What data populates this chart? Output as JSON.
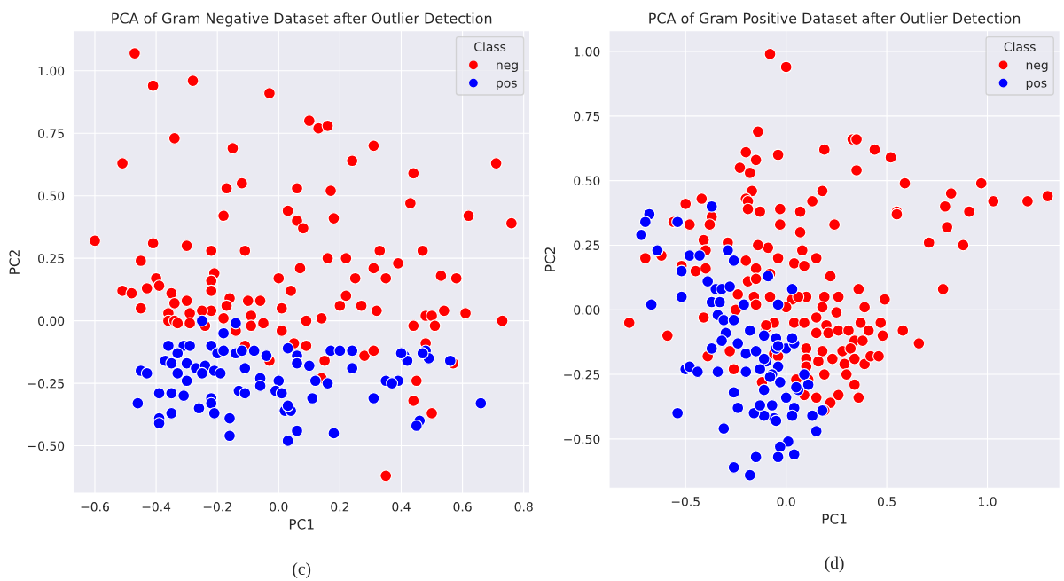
{
  "chart_data": [
    {
      "type": "scatter",
      "title": "PCA of Gram Negative Dataset after Outlier Detection",
      "xlabel": "PC1",
      "ylabel": "PC2",
      "legend_title": "Class",
      "legend": "top right",
      "grid": true,
      "marker": "circle",
      "annotations": [
        "(c)"
      ],
      "xlim": [
        -0.67,
        0.82
      ],
      "ylim": [
        -0.69,
        1.16
      ],
      "xticks": [
        {
          "value": -0.6,
          "label": "−0.6"
        },
        {
          "value": -0.4,
          "label": "−0.4"
        },
        {
          "value": -0.2,
          "label": "−0.2"
        },
        {
          "value": 0.0,
          "label": "0.0"
        },
        {
          "value": 0.2,
          "label": "0.2"
        },
        {
          "value": 0.4,
          "label": "0.4"
        },
        {
          "value": 0.6,
          "label": "0.6"
        },
        {
          "value": 0.8,
          "label": "0.8"
        }
      ],
      "yticks": [
        {
          "value": -0.5,
          "label": "−0.50"
        },
        {
          "value": -0.25,
          "label": "−0.25"
        },
        {
          "value": 0.0,
          "label": "0.00"
        },
        {
          "value": 0.25,
          "label": "0.25"
        },
        {
          "value": 0.5,
          "label": "0.50"
        },
        {
          "value": 0.75,
          "label": "0.75"
        },
        {
          "value": 1.0,
          "label": "1.00"
        }
      ],
      "series": [
        {
          "name": "neg",
          "color": "#ff0000",
          "x": [
            -0.47,
            -0.41,
            -0.28,
            -0.03,
            0.1,
            0.13,
            0.16,
            -0.34,
            -0.51,
            -0.15,
            0.31,
            0.24,
            0.71,
            0.44,
            -0.17,
            -0.12,
            0.06,
            0.17,
            0.43,
            -0.18,
            0.03,
            0.06,
            0.08,
            0.18,
            0.62,
            0.76,
            -0.6,
            -0.41,
            -0.3,
            -0.22,
            -0.11,
            0.16,
            0.22,
            0.33,
            0.47,
            -0.45,
            0.07,
            0.31,
            0.39,
            -0.21,
            0.0,
            0.25,
            0.35,
            0.53,
            0.58,
            -0.51,
            -0.48,
            -0.43,
            -0.4,
            -0.39,
            -0.35,
            -0.22,
            -0.22,
            -0.16,
            -0.3,
            -0.1,
            -0.06,
            0.04,
            0.22,
            -0.45,
            -0.34,
            -0.17,
            0.01,
            0.2,
            0.27,
            0.32,
            -0.36,
            -0.29,
            -0.22,
            -0.25,
            -0.09,
            0.14,
            0.48,
            0.5,
            0.54,
            0.61,
            -0.36,
            -0.34,
            -0.33,
            -0.29,
            -0.24,
            -0.18,
            -0.09,
            -0.05,
            0.09,
            0.44,
            0.51,
            0.73,
            -0.14,
            0.01,
            -0.11,
            0.05,
            0.09,
            0.28,
            0.31,
            -0.03,
            0.15,
            0.57,
            0.14,
            0.45,
            0.44,
            0.5,
            0.35,
            0.48
          ],
          "values": [
            1.07,
            0.94,
            0.96,
            0.91,
            0.8,
            0.77,
            0.78,
            0.73,
            0.63,
            0.69,
            0.7,
            0.64,
            0.63,
            0.59,
            0.53,
            0.55,
            0.53,
            0.52,
            0.47,
            0.42,
            0.44,
            0.4,
            0.37,
            0.41,
            0.42,
            0.39,
            0.32,
            0.31,
            0.3,
            0.28,
            0.28,
            0.25,
            0.25,
            0.28,
            0.28,
            0.24,
            0.21,
            0.21,
            0.23,
            0.19,
            0.17,
            0.17,
            0.17,
            0.18,
            0.17,
            0.12,
            0.11,
            0.13,
            0.17,
            0.14,
            0.11,
            0.16,
            0.12,
            0.09,
            0.08,
            0.08,
            0.08,
            0.12,
            0.1,
            0.05,
            0.07,
            0.06,
            0.05,
            0.06,
            0.06,
            0.04,
            0.03,
            0.03,
            0.04,
            0.04,
            0.02,
            0.01,
            0.02,
            0.02,
            0.04,
            0.03,
            0.0,
            0.0,
            -0.01,
            -0.01,
            -0.02,
            0.01,
            -0.02,
            -0.01,
            0.0,
            -0.02,
            -0.02,
            0.0,
            -0.04,
            -0.04,
            -0.1,
            -0.09,
            -0.1,
            -0.14,
            -0.12,
            -0.16,
            -0.16,
            -0.17,
            -0.23,
            -0.24,
            -0.32,
            -0.37,
            -0.62,
            -0.09
          ]
        },
        {
          "name": "pos",
          "color": "#0000ff",
          "x": [
            -0.25,
            -0.14,
            -0.18,
            -0.36,
            -0.31,
            -0.29,
            -0.22,
            -0.2,
            -0.18,
            -0.14,
            -0.12,
            -0.08,
            -0.33,
            -0.37,
            -0.35,
            -0.3,
            -0.27,
            -0.24,
            -0.21,
            -0.19,
            -0.11,
            -0.04,
            0.03,
            0.06,
            0.06,
            0.1,
            0.17,
            0.2,
            0.24,
            0.24,
            0.41,
            0.42,
            0.4,
            0.48,
            0.49,
            0.47,
            0.56,
            -0.45,
            -0.43,
            -0.33,
            -0.3,
            -0.25,
            -0.06,
            -0.06,
            0.0,
            0.12,
            0.16,
            0.35,
            0.39,
            0.37,
            -0.39,
            -0.35,
            -0.31,
            -0.22,
            -0.22,
            -0.13,
            -0.11,
            -0.01,
            0.01,
            0.11,
            0.31,
            -0.46,
            -0.26,
            -0.35,
            -0.21,
            0.02,
            0.04,
            0.03,
            -0.39,
            -0.39,
            -0.16,
            -0.16,
            0.03,
            0.06,
            0.18,
            0.46,
            0.45,
            0.66
          ],
          "values": [
            0.0,
            -0.01,
            -0.05,
            -0.1,
            -0.1,
            -0.1,
            -0.1,
            -0.13,
            -0.12,
            -0.13,
            -0.12,
            -0.12,
            -0.13,
            -0.16,
            -0.17,
            -0.17,
            -0.19,
            -0.18,
            -0.2,
            -0.21,
            -0.19,
            -0.14,
            -0.11,
            -0.14,
            -0.17,
            -0.18,
            -0.12,
            -0.12,
            -0.12,
            -0.19,
            -0.14,
            -0.16,
            -0.13,
            -0.12,
            -0.15,
            -0.13,
            -0.16,
            -0.2,
            -0.21,
            -0.21,
            -0.24,
            -0.21,
            -0.23,
            -0.26,
            -0.24,
            -0.24,
            -0.25,
            -0.24,
            -0.24,
            -0.25,
            -0.29,
            -0.29,
            -0.3,
            -0.31,
            -0.33,
            -0.28,
            -0.29,
            -0.28,
            -0.29,
            -0.31,
            -0.31,
            -0.33,
            -0.35,
            -0.37,
            -0.37,
            -0.36,
            -0.36,
            -0.34,
            -0.39,
            -0.41,
            -0.39,
            -0.46,
            -0.48,
            -0.44,
            -0.45,
            -0.4,
            -0.42,
            -0.33
          ]
        }
      ]
    },
    {
      "type": "scatter",
      "title": "PCA of Gram Positive Dataset after Outlier Detection",
      "xlabel": "PC1",
      "ylabel": "PC2",
      "legend_title": "Class",
      "legend": "top right",
      "grid": true,
      "marker": "circle",
      "annotations": [
        "(d)"
      ],
      "xlim": [
        -0.88,
        1.36
      ],
      "ylim": [
        -0.69,
        1.08
      ],
      "xticks": [
        {
          "value": -0.5,
          "label": "−0.5"
        },
        {
          "value": 0.0,
          "label": "0.0"
        },
        {
          "value": 0.5,
          "label": "0.5"
        },
        {
          "value": 1.0,
          "label": "1.0"
        }
      ],
      "yticks": [
        {
          "value": -0.5,
          "label": "−0.50"
        },
        {
          "value": -0.25,
          "label": "−0.25"
        },
        {
          "value": 0.0,
          "label": "0.00"
        },
        {
          "value": 0.25,
          "label": "0.25"
        },
        {
          "value": 0.5,
          "label": "0.50"
        },
        {
          "value": 0.75,
          "label": "0.75"
        },
        {
          "value": 1.0,
          "label": "1.00"
        }
      ],
      "series": [
        {
          "name": "neg",
          "color": "#ff0000",
          "x": [
            -0.08,
            0.0,
            -0.14,
            -0.2,
            -0.15,
            -0.23,
            -0.18,
            -0.04,
            0.19,
            0.33,
            0.35,
            0.44,
            0.52,
            0.35,
            0.59,
            -0.17,
            -0.2,
            0.18,
            0.24,
            -0.5,
            -0.42,
            -0.37,
            -0.38,
            -0.56,
            0.55,
            0.55,
            0.79,
            0.82,
            0.91,
            0.97,
            1.03,
            1.2,
            1.3,
            0.8,
            0.78,
            0.71,
            0.88,
            0.49,
            0.66,
            0.58,
            -0.03,
            0.07,
            0.13,
            -0.03,
            0.07,
            -0.09,
            -0.04,
            0.08,
            0.15,
            0.04,
            0.09,
            0.22,
            -0.08,
            0.03,
            0.1,
            0.19,
            0.26,
            0.36,
            0.39,
            0.18,
            0.25,
            -0.06,
            0.04,
            0.09,
            0.15,
            0.2,
            0.15,
            0.21,
            0.26,
            0.31,
            0.37,
            0.41,
            0.47,
            0.48,
            0.34,
            0.38,
            0.1,
            0.18,
            0.23,
            0.28,
            0.32,
            0.29,
            0.34,
            0.39,
            0.42,
            0.46,
            0.1,
            0.16,
            0.19,
            0.3,
            0.34,
            0.36,
            0.26,
            0.22,
            0.15,
            0.09,
            0.05,
            0.11,
            0.19,
            -0.1,
            -0.06,
            -0.19,
            -0.19,
            -0.13,
            -0.48,
            -0.29,
            -0.41,
            -0.4,
            -0.14,
            -0.7,
            -0.62,
            -0.52,
            -0.45,
            -0.4,
            -0.2,
            -0.15,
            -0.19,
            -0.15,
            -0.08,
            -0.24,
            -0.16,
            0.06,
            -0.15,
            0.0,
            -0.41,
            -0.25,
            -0.1,
            -0.78,
            -0.59,
            -0.28,
            -0.39,
            -0.26,
            -0.04,
            0.1,
            -0.12
          ],
          "values": [
            0.99,
            0.94,
            0.69,
            0.61,
            0.58,
            0.55,
            0.53,
            0.6,
            0.62,
            0.66,
            0.66,
            0.62,
            0.59,
            0.54,
            0.49,
            0.46,
            0.43,
            0.46,
            0.33,
            0.41,
            0.43,
            0.36,
            0.33,
            0.34,
            0.38,
            0.37,
            0.4,
            0.45,
            0.38,
            0.49,
            0.42,
            0.42,
            0.44,
            0.32,
            0.08,
            0.26,
            0.25,
            0.04,
            -0.13,
            -0.08,
            0.39,
            0.38,
            0.42,
            0.33,
            0.3,
            0.24,
            0.2,
            0.23,
            0.2,
            0.18,
            0.17,
            0.13,
            0.05,
            0.04,
            0.05,
            0.05,
            0.05,
            0.08,
            0.01,
            0.01,
            -0.01,
            -0.05,
            -0.05,
            -0.05,
            -0.03,
            -0.06,
            -0.09,
            -0.09,
            -0.08,
            -0.08,
            -0.05,
            -0.08,
            -0.05,
            -0.1,
            -0.12,
            -0.12,
            -0.15,
            -0.16,
            -0.19,
            -0.16,
            -0.15,
            -0.21,
            -0.19,
            -0.21,
            -0.18,
            -0.18,
            -0.19,
            -0.2,
            -0.25,
            -0.25,
            -0.29,
            -0.34,
            -0.33,
            -0.36,
            -0.34,
            -0.33,
            -0.27,
            -0.27,
            -0.39,
            -0.07,
            -0.17,
            0.42,
            0.39,
            0.38,
            0.33,
            0.26,
            0.27,
            0.23,
            0.25,
            0.2,
            0.21,
            0.17,
            0.15,
            0.16,
            0.19,
            0.16,
            0.11,
            0.12,
            0.14,
            0.06,
            0.05,
            0.05,
            0.02,
            0.01,
            -0.03,
            0.0,
            -0.06,
            -0.05,
            -0.1,
            -0.16,
            -0.18,
            -0.23,
            -0.18,
            -0.22,
            -0.28
          ]
        },
        {
          "name": "pos",
          "color": "#0000ff",
          "x": [
            -0.09,
            0.03,
            -0.04,
            -0.11,
            -0.05,
            -0.05,
            0.0,
            0.04,
            -0.1,
            -0.04,
            -0.07,
            -0.03,
            -0.11,
            0.09,
            0.11,
            0.06,
            0.0,
            -0.07,
            0.04,
            0.03,
            -0.06,
            -0.11,
            0.13,
            0.18,
            0.15,
            0.01,
            -0.03,
            0.04,
            -0.04,
            -0.68,
            -0.7,
            -0.72,
            -0.54,
            -0.37,
            -0.64,
            -0.48,
            -0.43,
            -0.52,
            -0.29,
            -0.26,
            -0.39,
            -0.35,
            -0.32,
            -0.28,
            -0.52,
            -0.67,
            -0.37,
            -0.33,
            -0.21,
            -0.34,
            -0.31,
            -0.26,
            -0.18,
            -0.3,
            -0.32,
            -0.24,
            -0.37,
            -0.2,
            -0.15,
            -0.11,
            -0.5,
            -0.48,
            -0.44,
            -0.34,
            -0.2,
            -0.13,
            -0.08,
            -0.26,
            -0.24,
            -0.16,
            -0.13,
            -0.05,
            -0.54,
            -0.31,
            -0.15,
            -0.26,
            -0.18,
            0.05,
            0.03,
            -0.04
          ],
          "values": [
            0.13,
            0.08,
            0.02,
            -0.1,
            -0.11,
            -0.15,
            -0.15,
            -0.13,
            -0.2,
            -0.22,
            -0.25,
            -0.28,
            -0.31,
            -0.25,
            -0.29,
            -0.31,
            -0.34,
            -0.37,
            -0.38,
            -0.41,
            -0.42,
            -0.41,
            -0.41,
            -0.39,
            -0.47,
            -0.51,
            -0.53,
            -0.56,
            -0.57,
            0.37,
            0.34,
            0.29,
            0.34,
            0.4,
            0.23,
            0.21,
            0.21,
            0.15,
            0.23,
            0.19,
            0.11,
            0.08,
            0.08,
            0.09,
            0.05,
            0.02,
            0.03,
            0.03,
            0.02,
            -0.02,
            -0.04,
            -0.04,
            -0.08,
            -0.09,
            -0.12,
            -0.13,
            -0.15,
            -0.17,
            -0.16,
            -0.19,
            -0.23,
            -0.22,
            -0.24,
            -0.24,
            -0.24,
            -0.23,
            -0.26,
            -0.32,
            -0.38,
            -0.4,
            -0.37,
            -0.43,
            -0.4,
            -0.46,
            -0.57,
            -0.61,
            -0.64,
            -0.3,
            -0.11,
            -0.14
          ]
        }
      ]
    }
  ]
}
